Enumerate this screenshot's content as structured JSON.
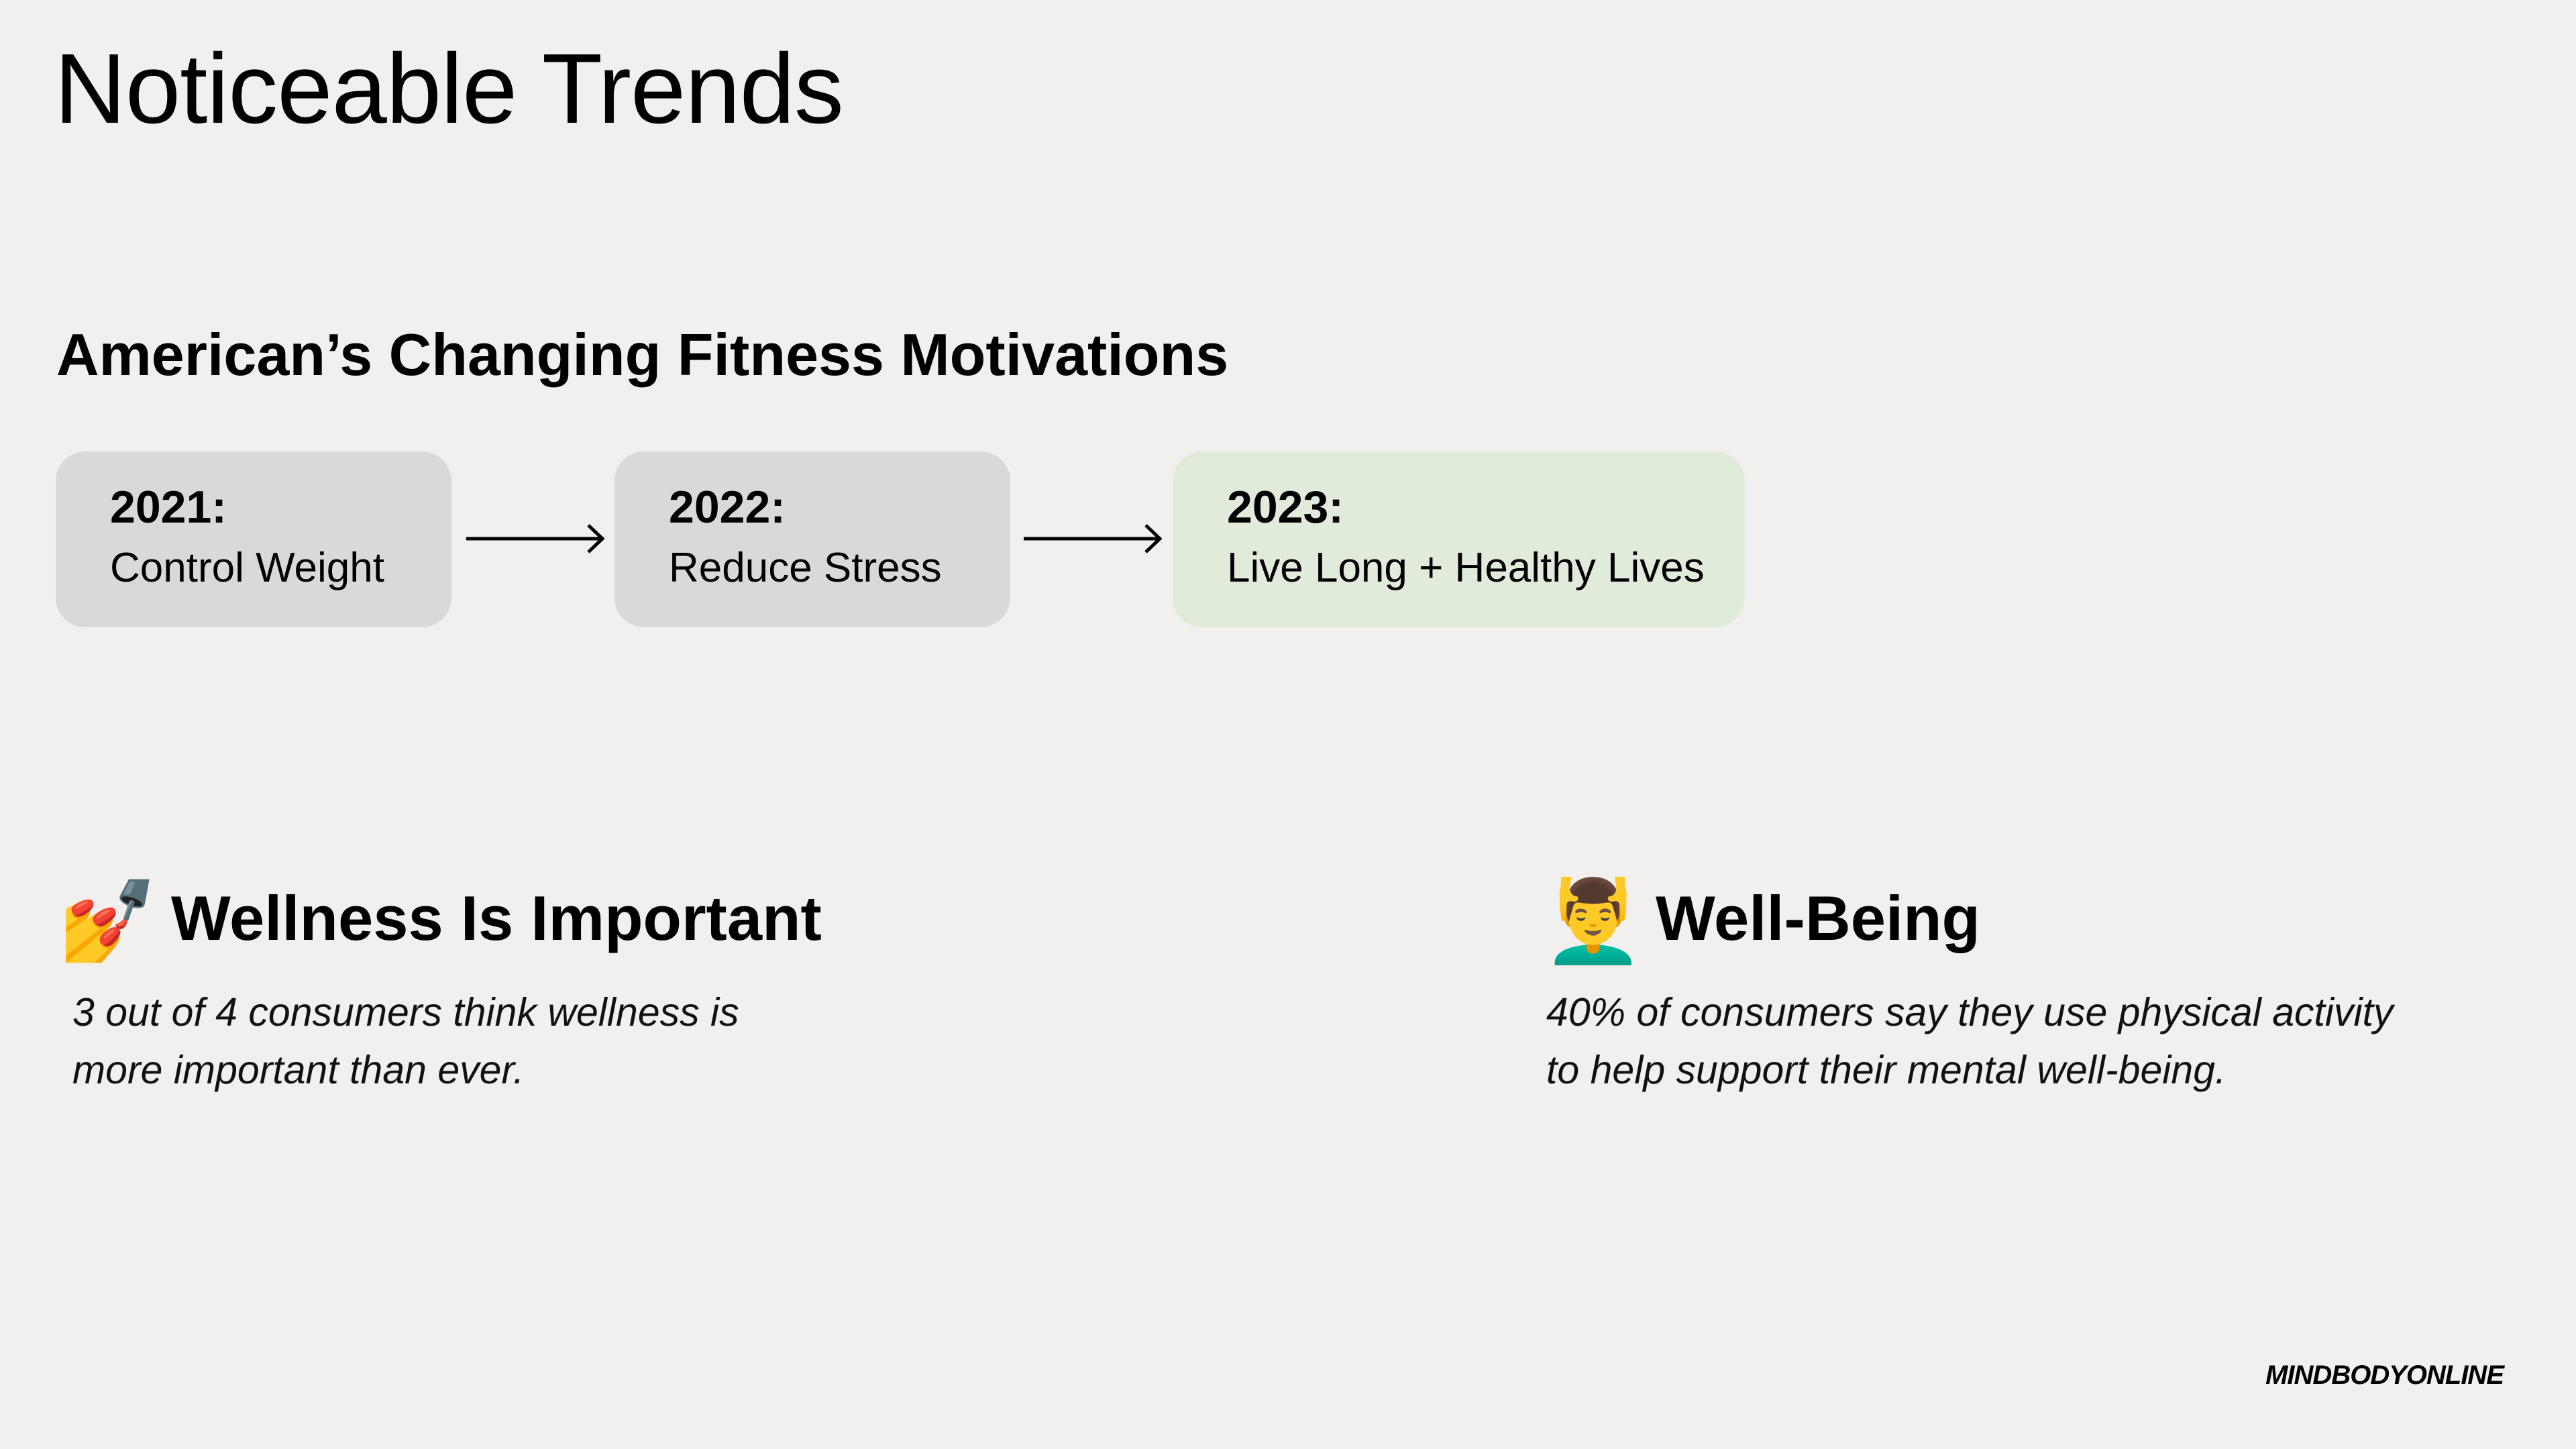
{
  "title": "Noticeable Trends",
  "subtitle": "American’s Changing Fitness Motivations",
  "timeline": [
    {
      "year": "2021:",
      "label": "Control Weight",
      "color": "#d9d9d9"
    },
    {
      "year": "2022:",
      "label": "Reduce Stress",
      "color": "#d9d9d9"
    },
    {
      "year": "2023:",
      "label": "Live Long + Healthy Lives",
      "color": "#e0ebdb"
    }
  ],
  "sections": [
    {
      "icon": "nail-polish-icon",
      "emoji": "💅",
      "heading": "Wellness Is Important",
      "lines": [
        "3 out of 4 consumers think wellness is",
        "more important than ever."
      ]
    },
    {
      "icon": "person-getting-massage-icon",
      "emoji": "💆‍♂️",
      "heading": "Well-Being",
      "lines": [
        "40% of consumers say they use physical activity",
        "to help support their mental well-being."
      ]
    }
  ],
  "brand": "MINDBODYONLINE",
  "colors": {
    "background": "#f1f0ee",
    "box_gray": "#d9d9d9",
    "box_green": "#e0ebdb"
  }
}
